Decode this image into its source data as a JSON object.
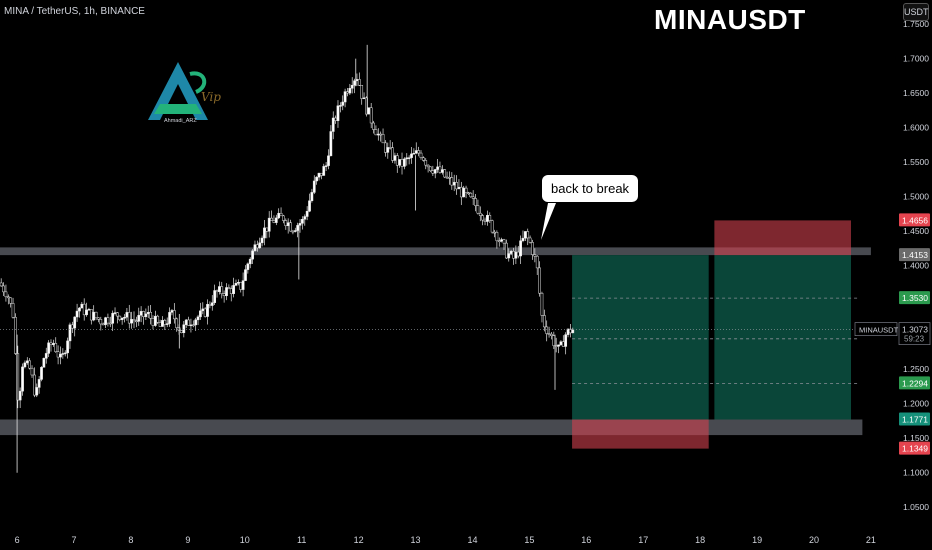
{
  "header": {
    "symbol_info": "MINA / TetherUS, 1h, BINANCE",
    "big_title": "MINAUSDT",
    "currency": "USDT"
  },
  "logo": {
    "text": "Ahmadi_ARZ",
    "mark_text": "Vip",
    "colors": [
      "#1e88a8",
      "#23b37a",
      "#8a6a2a"
    ]
  },
  "annotation": {
    "text": "back to break"
  },
  "chart_data": {
    "type": "candlestick",
    "y_axis": {
      "range": [
        1.03,
        1.785
      ],
      "ticks": [
        "1.7500",
        "1.7000",
        "1.6500",
        "1.6000",
        "1.5500",
        "1.5000",
        "1.4500",
        "1.4000",
        "1.3500",
        "1.3000",
        "1.2500",
        "1.2000",
        "1.1500",
        "1.1000",
        "1.0500"
      ]
    },
    "x_axis": {
      "range": [
        5.7,
        21.3
      ],
      "ticks": [
        "6",
        "7",
        "8",
        "9",
        "10",
        "11",
        "12",
        "13",
        "14",
        "15",
        "16",
        "17",
        "18",
        "19",
        "20",
        "21"
      ]
    },
    "price_labels": [
      {
        "text": "1.4656",
        "value": 1.4656,
        "color": "#e5444f"
      },
      {
        "text": "1.4153",
        "value": 1.4153,
        "color": "#6b6b6b"
      },
      {
        "text": "1.3530",
        "value": 1.353,
        "color": "#2b9a4e"
      },
      {
        "text": "1.2294",
        "value": 1.2294,
        "color": "#2b9a4e"
      },
      {
        "text": "1.1771",
        "value": 1.1771,
        "color": "#15907a"
      },
      {
        "text": "1.1349",
        "value": 1.1349,
        "color": "#e5444f"
      }
    ],
    "current": {
      "symbol": "MINAUSDT",
      "price": "1.3073",
      "value": 1.3073,
      "countdown": "59:23"
    },
    "zones": [
      {
        "name": "resistance",
        "low": 1.4153,
        "high": 1.4265,
        "x_start": 5.7,
        "x_end": 21.0,
        "color": "#55575e"
      },
      {
        "name": "support",
        "low": 1.1545,
        "high": 1.1771,
        "x_start": 5.7,
        "x_end": 20.85,
        "color": "#55575e"
      }
    ],
    "positions": [
      {
        "type": "long",
        "x_start": 15.75,
        "x_end": 18.15,
        "entry": 1.1771,
        "target": 1.4153,
        "stop": 1.1349
      },
      {
        "type": "short",
        "x_start": 18.25,
        "x_end": 20.65,
        "entry": 1.4153,
        "target": 1.1771,
        "stop": 1.4656
      }
    ],
    "dashed_levels": [
      {
        "value": 1.353,
        "x_start": 15.75,
        "x_end": 20.8
      },
      {
        "value": 1.2294,
        "x_start": 15.75,
        "x_end": 20.8
      },
      {
        "value": 1.294,
        "x_start": 15.75,
        "x_end": 20.8
      }
    ],
    "price_path": [
      [
        5.7,
        1.375
      ],
      [
        5.85,
        1.36
      ],
      [
        5.95,
        1.33
      ],
      [
        6.0,
        1.26
      ],
      [
        6.05,
        1.19
      ],
      [
        6.1,
        1.26
      ],
      [
        6.25,
        1.25
      ],
      [
        6.35,
        1.21
      ],
      [
        6.5,
        1.27
      ],
      [
        6.65,
        1.29
      ],
      [
        6.8,
        1.26
      ],
      [
        6.95,
        1.31
      ],
      [
        7.1,
        1.34
      ],
      [
        7.3,
        1.33
      ],
      [
        7.5,
        1.32
      ],
      [
        7.8,
        1.33
      ],
      [
        8.1,
        1.32
      ],
      [
        8.3,
        1.33
      ],
      [
        8.55,
        1.31
      ],
      [
        8.75,
        1.33
      ],
      [
        8.9,
        1.305
      ],
      [
        9.05,
        1.32
      ],
      [
        9.3,
        1.33
      ],
      [
        9.5,
        1.36
      ],
      [
        9.75,
        1.365
      ],
      [
        9.95,
        1.37
      ],
      [
        10.1,
        1.41
      ],
      [
        10.3,
        1.445
      ],
      [
        10.5,
        1.465
      ],
      [
        10.7,
        1.47
      ],
      [
        10.85,
        1.455
      ],
      [
        11.05,
        1.465
      ],
      [
        11.25,
        1.52
      ],
      [
        11.45,
        1.545
      ],
      [
        11.55,
        1.6
      ],
      [
        11.75,
        1.645
      ],
      [
        11.9,
        1.67
      ],
      [
        12.0,
        1.675
      ],
      [
        12.1,
        1.64
      ],
      [
        12.25,
        1.61
      ],
      [
        12.45,
        1.575
      ],
      [
        12.6,
        1.56
      ],
      [
        12.75,
        1.545
      ],
      [
        12.9,
        1.555
      ],
      [
        13.1,
        1.565
      ],
      [
        13.25,
        1.545
      ],
      [
        13.45,
        1.535
      ],
      [
        13.65,
        1.52
      ],
      [
        13.85,
        1.505
      ],
      [
        14.05,
        1.49
      ],
      [
        14.25,
        1.47
      ],
      [
        14.45,
        1.445
      ],
      [
        14.6,
        1.42
      ],
      [
        14.75,
        1.41
      ],
      [
        14.85,
        1.425
      ],
      [
        14.95,
        1.445
      ],
      [
        15.05,
        1.43
      ],
      [
        15.15,
        1.4
      ],
      [
        15.25,
        1.32
      ],
      [
        15.35,
        1.305
      ],
      [
        15.45,
        1.29
      ],
      [
        15.55,
        1.275
      ],
      [
        15.65,
        1.3
      ],
      [
        15.75,
        1.307
      ]
    ]
  }
}
